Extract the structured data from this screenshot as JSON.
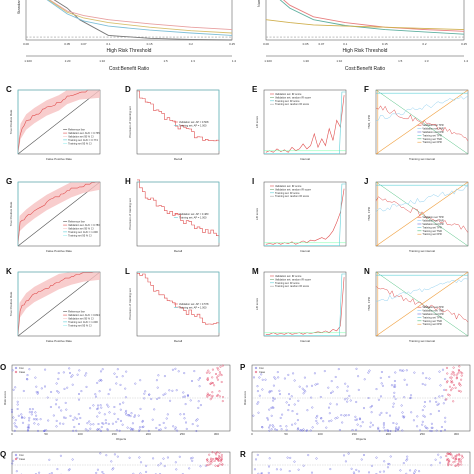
{
  "figure": {
    "panel_letters": [
      "C",
      "D",
      "E",
      "F",
      "G",
      "H",
      "I",
      "J",
      "K",
      "L",
      "M",
      "N",
      "O",
      "P",
      "Q",
      "R"
    ]
  },
  "chart_data": [
    {
      "id": "top-left",
      "type": "line",
      "ylabel": "Standardized Net Benefit",
      "xlabel": "High Risk Threshold",
      "x_ticks": [
        "0.00",
        "0.05",
        "0.07",
        "0.1",
        "0.15",
        "0.2",
        "0.25"
      ],
      "secondary_xlabel": "Cost:Benefit Ratio",
      "secondary_ticks": [
        "1:100",
        "1:20",
        "1:10",
        "1:5",
        "1:3",
        "1:4"
      ],
      "xlim": [
        0,
        0.25
      ],
      "ylim": [
        0,
        1
      ],
      "series": [
        {
          "color": "#777777",
          "x": [
            0,
            0.05,
            0.065,
            0.1,
            0.15,
            0.2,
            0.25
          ],
          "y": [
            1.0,
            0.55,
            0.35,
            0.08,
            0.03,
            0.01,
            0.0
          ]
        },
        {
          "color": "#e8a0a0",
          "x": [
            0,
            0.05,
            0.07,
            0.1,
            0.15,
            0.2,
            0.25
          ],
          "y": [
            0.95,
            0.5,
            0.42,
            0.35,
            0.28,
            0.22,
            0.18
          ]
        },
        {
          "color": "#d8c070",
          "x": [
            0,
            0.05,
            0.07,
            0.1,
            0.15,
            0.2,
            0.25
          ],
          "y": [
            0.95,
            0.48,
            0.38,
            0.3,
            0.22,
            0.16,
            0.12
          ]
        },
        {
          "color": "#80c0d8",
          "x": [
            0,
            0.05,
            0.07,
            0.1,
            0.15,
            0.2,
            0.25
          ],
          "y": [
            0.95,
            0.45,
            0.33,
            0.24,
            0.17,
            0.12,
            0.08
          ]
        }
      ]
    },
    {
      "id": "top-right",
      "type": "line",
      "ylabel": "Number high risk",
      "xlabel": "High Risk Threshold",
      "x_ticks": [
        "0.00",
        "0.05",
        "0.07",
        "0.1",
        "0.15",
        "0.2",
        "0.25"
      ],
      "secondary_xlabel": "Cost:Benefit Ratio",
      "secondary_ticks": [
        "1:100",
        "1:20",
        "1:10",
        "1:5",
        "1:3",
        "1:4"
      ],
      "xlim": [
        0,
        0.25
      ],
      "ylim": [
        0,
        1
      ],
      "series": [
        {
          "color": "#e88080",
          "x": [
            0,
            0.03,
            0.06,
            0.1,
            0.15,
            0.2,
            0.25
          ],
          "y": [
            0.95,
            0.6,
            0.4,
            0.3,
            0.22,
            0.18,
            0.15
          ]
        },
        {
          "color": "#60b0a0",
          "x": [
            0,
            0.03,
            0.06,
            0.1,
            0.15,
            0.2,
            0.25
          ],
          "y": [
            0.9,
            0.55,
            0.35,
            0.25,
            0.18,
            0.14,
            0.1
          ]
        },
        {
          "color": "#d0b050",
          "x": [
            0,
            0.03,
            0.06,
            0.1,
            0.15,
            0.2,
            0.25
          ],
          "y": [
            0.35,
            0.3,
            0.26,
            0.24,
            0.22,
            0.2,
            0.18
          ]
        }
      ]
    },
    {
      "row_letters": [
        "C",
        "D",
        "E",
        "F"
      ],
      "panels": [
        {
          "type": "roc",
          "xlabel": "False Positive Rate",
          "ylabel": "True Positive Rate",
          "legend": [
            "Reference line",
            "Validation set: AUC = 0.765",
            "Validation set 95 % CI",
            "Training set: AUC = 0.774",
            "Training set 95 % CI"
          ],
          "curve": [
            [
              0,
              0
            ],
            [
              0.03,
              0.35
            ],
            [
              0.1,
              0.5
            ],
            [
              0.2,
              0.6
            ],
            [
              0.35,
              0.72
            ],
            [
              0.5,
              0.8
            ],
            [
              0.6,
              0.9
            ],
            [
              0.75,
              0.97
            ],
            [
              1,
              1
            ]
          ]
        },
        {
          "type": "pr",
          "xlabel": "Recall",
          "ylabel": "Precision of training set",
          "legend": [
            "Validation set: AP = 0.508",
            "Training set: AP = 1.000"
          ],
          "curve": [
            [
              0,
              1
            ],
            [
              0.05,
              0.85
            ],
            [
              0.1,
              0.8
            ],
            [
              0.2,
              0.7
            ],
            [
              0.35,
              0.55
            ],
            [
              0.5,
              0.42
            ],
            [
              0.7,
              0.3
            ],
            [
              0.9,
              0.2
            ],
            [
              1,
              0.15
            ]
          ]
        },
        {
          "type": "lift",
          "xlabel": "Interval",
          "ylabel": "Lift score",
          "legend": [
            "Validation set: IR score",
            "Validation set: random IR score",
            "Training set: IR score",
            "Training set: random IR score"
          ],
          "values": [
            0.1,
            0.2,
            0.1,
            0.3,
            0.15,
            0.25,
            0.1,
            0.4,
            0.2,
            0.3,
            0.6,
            0.3,
            0.5,
            1.2,
            0.4,
            0.9,
            0.5,
            1.5,
            0.8,
            2.0,
            1.6,
            3.5
          ]
        },
        {
          "type": "calib",
          "xlabel": "Training set interval",
          "ylabel": "TNR, FPR",
          "legend": [
            "Validation set TPR",
            "Validation set TNR",
            "Validation set FPR",
            "Training set TPR",
            "Training set TNR",
            "Training set FPR"
          ]
        }
      ]
    },
    {
      "row_letters": [
        "G",
        "H",
        "I",
        "J"
      ],
      "panels": [
        {
          "type": "roc",
          "xlabel": "False Positive Rate",
          "ylabel": "True Positive Rate",
          "legend": [
            "Reference line",
            "Validation set: AUC = 0.780",
            "Validation set 95 % CI",
            "Training set: AUC = 1.000",
            "Training set 95 % CI"
          ],
          "curve": [
            [
              0,
              0
            ],
            [
              0.02,
              0.35
            ],
            [
              0.1,
              0.45
            ],
            [
              0.2,
              0.55
            ],
            [
              0.35,
              0.68
            ],
            [
              0.5,
              0.78
            ],
            [
              0.65,
              0.88
            ],
            [
              0.8,
              0.95
            ],
            [
              1,
              1
            ]
          ]
        },
        {
          "type": "pr",
          "xlabel": "Recall",
          "ylabel": "Precision of training set",
          "legend": [
            "Validation set: AP = 0.480",
            "Training set: AP = 1.000"
          ],
          "curve": [
            [
              0,
              1
            ],
            [
              0.05,
              0.9
            ],
            [
              0.1,
              0.78
            ],
            [
              0.2,
              0.7
            ],
            [
              0.3,
              0.6
            ],
            [
              0.45,
              0.5
            ],
            [
              0.6,
              0.35
            ],
            [
              0.8,
              0.25
            ],
            [
              1,
              0.15
            ]
          ]
        },
        {
          "type": "lift",
          "xlabel": "Interval",
          "ylabel": "Lift score",
          "legend": [
            "Validation set: IR score",
            "Validation set: random IR score",
            "Training set: IR score",
            "Training set: random IR score"
          ],
          "values": [
            0.1,
            0.15,
            0.1,
            0.2,
            0.1,
            0.2,
            0.15,
            0.25,
            0.1,
            0.2,
            0.3,
            0.2,
            0.35,
            0.3,
            0.4,
            0.5,
            0.4,
            0.6,
            0.9,
            1.4,
            2.0,
            3.4
          ]
        },
        {
          "type": "calib",
          "xlabel": "Training set interval",
          "ylabel": "TNR, FPR",
          "legend": [
            "Validation set TPR",
            "Validation set TNR",
            "Validation set FPR",
            "Training set TPR",
            "Training set TNR",
            "Training set FPR"
          ]
        }
      ]
    },
    {
      "row_letters": [
        "K",
        "L",
        "M",
        "N"
      ],
      "panels": [
        {
          "type": "roc",
          "xlabel": "False Positive Rate",
          "ylabel": "True Positive Rate",
          "legend": [
            "Reference line",
            "Validation set: AUC = 0.824",
            "Validation set 95 % CI",
            "Training set: AUC = 1.000",
            "Training set 95 % CI"
          ],
          "curve": [
            [
              0,
              0
            ],
            [
              0.02,
              0.4
            ],
            [
              0.1,
              0.55
            ],
            [
              0.2,
              0.65
            ],
            [
              0.35,
              0.75
            ],
            [
              0.5,
              0.85
            ],
            [
              0.65,
              0.92
            ],
            [
              0.8,
              0.97
            ],
            [
              1,
              1
            ]
          ]
        },
        {
          "type": "pr",
          "xlabel": "Recall",
          "ylabel": "Precision of training set",
          "legend": [
            "Validation set: AP = 0.578",
            "Training set: AP = 1.000"
          ],
          "curve": [
            [
              0,
              1
            ],
            [
              0.05,
              0.95
            ],
            [
              0.1,
              0.88
            ],
            [
              0.2,
              0.75
            ],
            [
              0.35,
              0.6
            ],
            [
              0.5,
              0.45
            ],
            [
              0.65,
              0.35
            ],
            [
              0.85,
              0.22
            ],
            [
              1,
              0.15
            ]
          ]
        },
        {
          "type": "lift",
          "xlabel": "Interval",
          "ylabel": "Lift score",
          "legend": [
            "Validation set: IR score",
            "Validation set: random IR score",
            "Training set: IR score",
            "Training set: random IR score"
          ],
          "values": [
            0.1,
            0.1,
            0.2,
            0.1,
            0.15,
            0.1,
            0.2,
            0.1,
            0.15,
            0.2,
            0.1,
            0.2,
            0.15,
            0.2,
            0.25,
            0.2,
            0.3,
            0.2,
            0.4,
            0.3,
            0.6,
            3.5
          ]
        },
        {
          "type": "calib",
          "xlabel": "Training set interval",
          "ylabel": "TNR, FPR",
          "legend": [
            "Validation set TPR",
            "Validation set TNR",
            "Validation set FPR",
            "Training set TPR",
            "Training set TNR",
            "Training set FPR"
          ]
        }
      ]
    },
    {
      "row_letters": [
        "O",
        "P"
      ],
      "panels": [
        {
          "type": "scatter",
          "xlabel": "Objects",
          "ylabel": "Risk score",
          "legend": [
            "Con",
            "Case"
          ],
          "x_ticks": [
            "0",
            "50",
            "100",
            "150",
            "200",
            "250",
            "300"
          ],
          "xlim": [
            0,
            320
          ],
          "ylim": [
            0,
            1
          ],
          "seed": 7
        },
        {
          "type": "scatter",
          "xlabel": "Objects",
          "ylabel": "Risk score",
          "legend": [
            "Con",
            "Case"
          ],
          "x_ticks": [
            "0",
            "50",
            "100",
            "150",
            "200",
            "250",
            "300"
          ],
          "xlim": [
            0,
            320
          ],
          "ylim": [
            0,
            1
          ],
          "seed": 13
        }
      ]
    },
    {
      "row_letters": [
        "Q",
        "R"
      ],
      "panels": [
        {
          "type": "scatter",
          "xlabel": "",
          "ylabel": "",
          "legend": [
            "Con",
            "Case"
          ],
          "xlim": [
            0,
            320
          ],
          "ylim": [
            0,
            1
          ],
          "seed": 21,
          "cropped": true
        },
        {
          "type": "scatter",
          "xlabel": "",
          "ylabel": "",
          "legend": [],
          "xlim": [
            0,
            320
          ],
          "ylim": [
            0,
            1
          ],
          "seed": 33,
          "cropped": true
        }
      ]
    }
  ],
  "colors": {
    "ref": "#555555",
    "roc": "#e05050",
    "ci": "#f6c0c0",
    "train_cyan": "#60d0d8",
    "orange": "#f0a040",
    "green": "#50c080",
    "violet": "#7070e0",
    "case": "#e04060"
  }
}
